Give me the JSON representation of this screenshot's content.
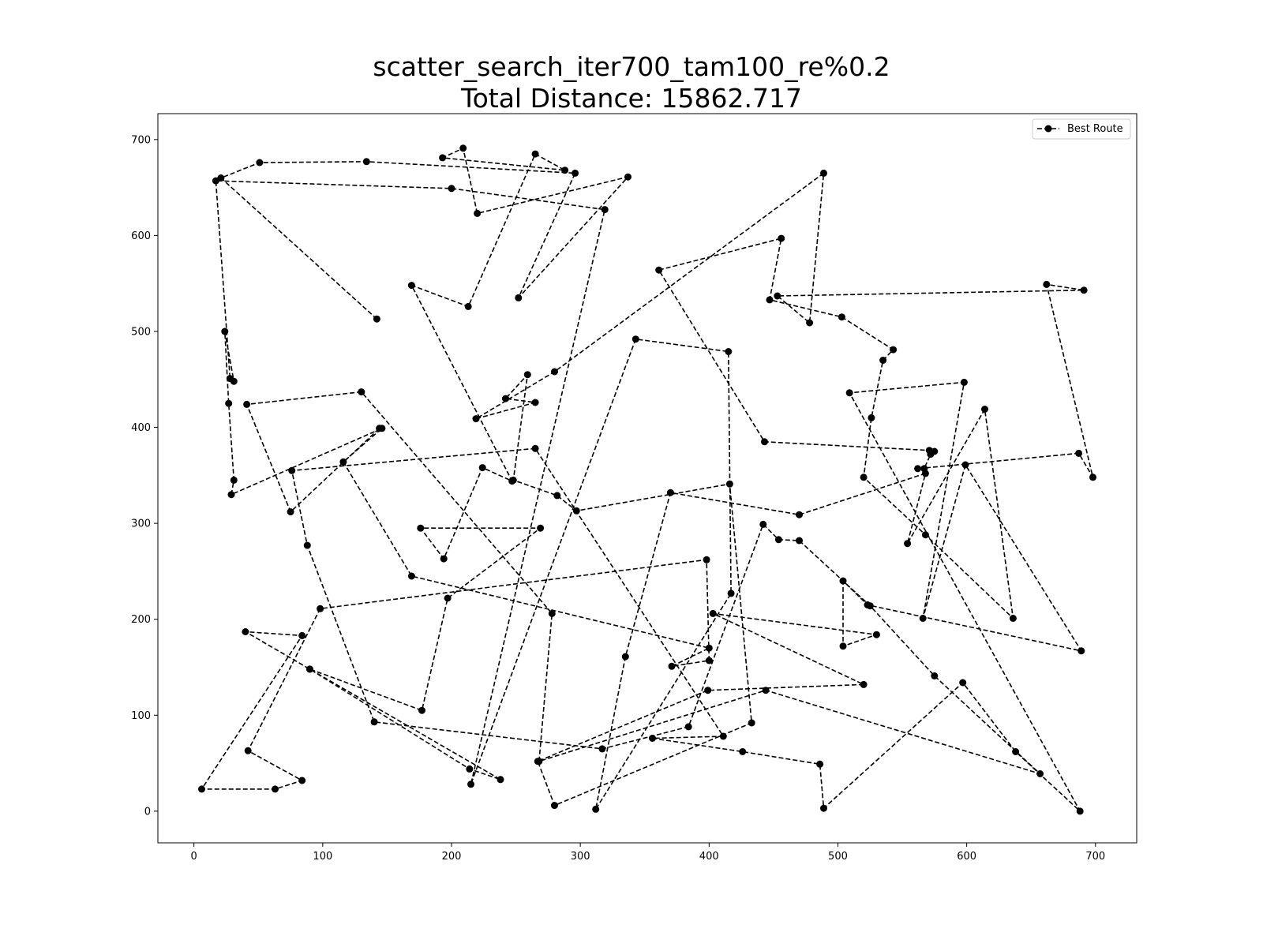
{
  "chart_data": {
    "type": "line",
    "title_line1": "scatter_search_iter700_tam100_re%0.2",
    "title_line2": "Total Distance: 15862.717",
    "xlabel": "",
    "ylabel": "",
    "xlim": [
      -28,
      732
    ],
    "ylim": [
      -33,
      727
    ],
    "xticks": [
      0,
      100,
      200,
      300,
      400,
      500,
      600,
      700
    ],
    "yticks": [
      0,
      100,
      200,
      300,
      400,
      500,
      600,
      700
    ],
    "grid": false,
    "legend_position": "top-right",
    "series": [
      {
        "name": "Best Route",
        "color": "#000000",
        "linestyle": "dashed",
        "marker": "circle",
        "points": [
          [
            142,
            513
          ],
          [
            21,
            660
          ],
          [
            51,
            676
          ],
          [
            134,
            677
          ],
          [
            296,
            665
          ],
          [
            252,
            535
          ],
          [
            337,
            661
          ],
          [
            220,
            623
          ],
          [
            209,
            691
          ],
          [
            193,
            681
          ],
          [
            288,
            668
          ],
          [
            265,
            685
          ],
          [
            213,
            526
          ],
          [
            169,
            548
          ],
          [
            247,
            344
          ],
          [
            224,
            358
          ],
          [
            194,
            263
          ],
          [
            176,
            295
          ],
          [
            269,
            295
          ],
          [
            197,
            222
          ],
          [
            177,
            105
          ],
          [
            90,
            148
          ],
          [
            214,
            44
          ],
          [
            238,
            33
          ],
          [
            90,
            148
          ],
          [
            40,
            187
          ],
          [
            84,
            183
          ],
          [
            6,
            23
          ],
          [
            63,
            23
          ],
          [
            84,
            32
          ],
          [
            42,
            63
          ],
          [
            98,
            211
          ],
          [
            398,
            262
          ],
          [
            400,
            157
          ],
          [
            371,
            151
          ],
          [
            400,
            170
          ],
          [
            169,
            245
          ],
          [
            116,
            364
          ],
          [
            146,
            399
          ],
          [
            29,
            330
          ],
          [
            31,
            345
          ],
          [
            27,
            425
          ],
          [
            24,
            500
          ],
          [
            31,
            448
          ],
          [
            28,
            451
          ],
          [
            17,
            657
          ],
          [
            200,
            649
          ],
          [
            319,
            627
          ],
          [
            215,
            28
          ],
          [
            343,
            492
          ],
          [
            415,
            479
          ],
          [
            417,
            227
          ],
          [
            312,
            2
          ],
          [
            335,
            161
          ],
          [
            370,
            332
          ],
          [
            470,
            309
          ],
          [
            568,
            352
          ],
          [
            554,
            279
          ],
          [
            614,
            419
          ],
          [
            636,
            201
          ],
          [
            568,
            288
          ],
          [
            520,
            348
          ],
          [
            526,
            410
          ],
          [
            535,
            470
          ],
          [
            543,
            481
          ],
          [
            503,
            515
          ],
          [
            447,
            533
          ],
          [
            456,
            597
          ],
          [
            361,
            564
          ],
          [
            443,
            385
          ],
          [
            571,
            376
          ],
          [
            575,
            375
          ],
          [
            572,
            372
          ],
          [
            567,
            357
          ],
          [
            562,
            357
          ],
          [
            687,
            373
          ],
          [
            698,
            348
          ],
          [
            662,
            549
          ],
          [
            691,
            543
          ],
          [
            453,
            537
          ],
          [
            478,
            509
          ],
          [
            489,
            665
          ],
          [
            280,
            458
          ],
          [
            219,
            409
          ],
          [
            265,
            426
          ],
          [
            242,
            430
          ],
          [
            259,
            455
          ],
          [
            248,
            345
          ],
          [
            282,
            329
          ],
          [
            297,
            313
          ],
          [
            416,
            341
          ],
          [
            433,
            92
          ],
          [
            280,
            6
          ],
          [
            267,
            52
          ],
          [
            399,
            126
          ],
          [
            520,
            132
          ],
          [
            403,
            206
          ],
          [
            530,
            184
          ],
          [
            504,
            172
          ],
          [
            504,
            240
          ],
          [
            523,
            215
          ],
          [
            689,
            167
          ],
          [
            599,
            361
          ],
          [
            566,
            201
          ],
          [
            598,
            447
          ],
          [
            509,
            436
          ],
          [
            688,
            0
          ],
          [
            638,
            62
          ],
          [
            597,
            134
          ],
          [
            489,
            3
          ],
          [
            486,
            49
          ],
          [
            426,
            62
          ],
          [
            356,
            76
          ],
          [
            411,
            78
          ],
          [
            265,
            378
          ],
          [
            76,
            355
          ],
          [
            88,
            277
          ],
          [
            140,
            93
          ],
          [
            317,
            65
          ],
          [
            384,
            88
          ],
          [
            442,
            299
          ],
          [
            454,
            283
          ],
          [
            470,
            282
          ],
          [
            525,
            214
          ],
          [
            575,
            141
          ],
          [
            657,
            39
          ],
          [
            444,
            126
          ],
          [
            268,
            52
          ],
          [
            278,
            206
          ],
          [
            130,
            437
          ],
          [
            41,
            424
          ],
          [
            75,
            312
          ],
          [
            144,
            399
          ]
        ]
      }
    ]
  }
}
